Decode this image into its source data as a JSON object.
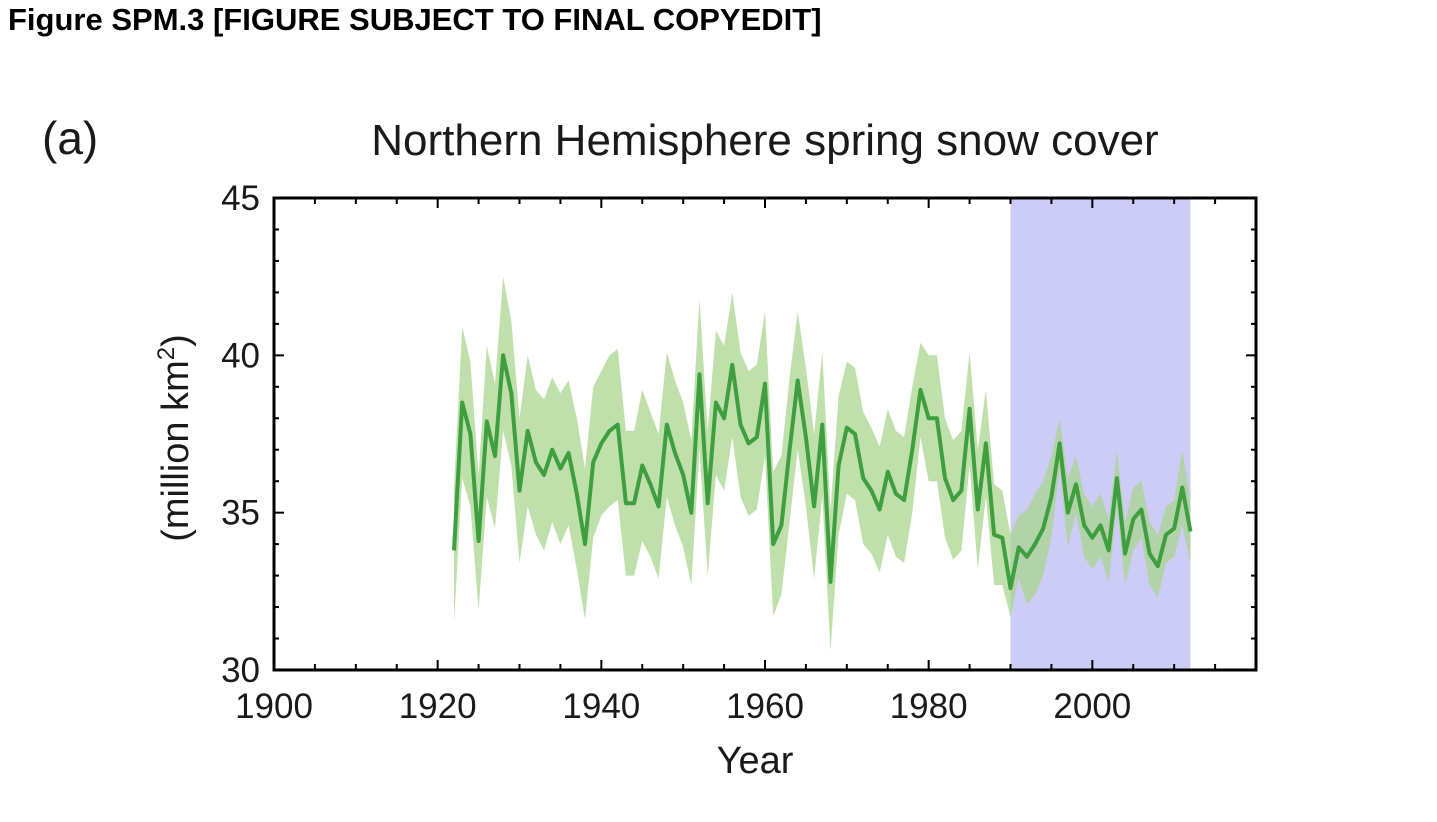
{
  "figure_heading": "Figure SPM.3 [FIGURE SUBJECT TO FINAL COPYEDIT]",
  "panel_label": "(a)",
  "colors": {
    "line": "#3f9e3f",
    "band": "#a9d58f",
    "highlight": "#ccccf7",
    "axis": "#000000"
  },
  "chart_data": {
    "type": "line",
    "title": "Northern Hemisphere spring snow cover",
    "xlabel": "Year",
    "ylabel_main": "(million km",
    "ylabel_sup": "2",
    "ylabel_end": ")",
    "xlim": [
      1900,
      2020
    ],
    "ylim": [
      30,
      45
    ],
    "xticks": [
      1900,
      1920,
      1940,
      1960,
      1980,
      2000
    ],
    "yticks": [
      30,
      35,
      40,
      45
    ],
    "highlight_period": [
      1990,
      2012
    ],
    "grid": false,
    "legend": "none",
    "series": [
      {
        "x": [
          1922,
          1923,
          1924,
          1925,
          1926,
          1927,
          1928,
          1929,
          1930,
          1931,
          1932,
          1933,
          1934,
          1935,
          1936,
          1937,
          1938,
          1939,
          1940,
          1941,
          1942,
          1943,
          1944,
          1945,
          1946,
          1947,
          1948,
          1949,
          1950,
          1951,
          1952,
          1953,
          1954,
          1955,
          1956,
          1957,
          1958,
          1959,
          1960,
          1961,
          1962,
          1963,
          1964,
          1965,
          1966,
          1967,
          1968,
          1969,
          1970,
          1971,
          1972,
          1973,
          1974,
          1975,
          1976,
          1977,
          1978,
          1979,
          1980,
          1981,
          1982,
          1983,
          1984,
          1985,
          1986,
          1987,
          1988,
          1989,
          1990,
          1991,
          1992,
          1993,
          1994,
          1995,
          1996,
          1997,
          1998,
          1999,
          2000,
          2001,
          2002,
          2003,
          2004,
          2005,
          2006,
          2007,
          2008,
          2009,
          2010,
          2011,
          2012
        ],
        "y": [
          33.8,
          38.5,
          37.5,
          34.1,
          37.9,
          36.8,
          40.0,
          38.8,
          35.7,
          37.6,
          36.6,
          36.2,
          37.0,
          36.4,
          36.9,
          35.6,
          34.0,
          36.6,
          37.2,
          37.6,
          37.8,
          35.3,
          35.3,
          36.5,
          35.9,
          35.2,
          37.8,
          36.9,
          36.2,
          35.0,
          39.4,
          35.3,
          38.5,
          38.0,
          39.7,
          37.8,
          37.2,
          37.4,
          39.1,
          34.0,
          34.6,
          37.0,
          39.2,
          37.4,
          35.2,
          37.8,
          32.8,
          36.5,
          37.7,
          37.5,
          36.1,
          35.7,
          35.1,
          36.3,
          35.6,
          35.4,
          37.0,
          38.9,
          38.0,
          38.0,
          36.1,
          35.4,
          35.7,
          38.3,
          35.1,
          37.2,
          34.3,
          34.2,
          32.6,
          33.9,
          33.6,
          34.0,
          34.5,
          35.5,
          37.2,
          35.0,
          35.9,
          34.6,
          34.2,
          34.6,
          33.8,
          36.1,
          33.7,
          34.8,
          35.1,
          33.7,
          33.3,
          34.3,
          34.5,
          35.8,
          34.4
        ],
        "upper": [
          35.8,
          40.9,
          39.8,
          36.2,
          40.3,
          39.1,
          42.5,
          41.1,
          38.0,
          40.0,
          38.9,
          38.6,
          39.3,
          38.8,
          39.2,
          38.0,
          36.4,
          39.0,
          39.5,
          40.0,
          40.2,
          37.6,
          37.6,
          38.9,
          38.2,
          37.5,
          40.1,
          39.2,
          38.5,
          37.3,
          41.8,
          37.6,
          40.8,
          40.3,
          42.0,
          40.1,
          39.5,
          39.7,
          41.4,
          36.3,
          36.8,
          39.3,
          41.4,
          39.6,
          37.5,
          40.1,
          35.1,
          38.7,
          39.8,
          39.6,
          38.2,
          37.7,
          37.1,
          38.3,
          37.6,
          37.4,
          39.0,
          40.4,
          40.0,
          40.0,
          38.0,
          37.3,
          37.6,
          40.1,
          37.0,
          38.9,
          35.9,
          35.7,
          34.3,
          34.9,
          35.1,
          35.6,
          36.0,
          36.8,
          38.0,
          36.1,
          36.8,
          35.6,
          35.2,
          35.6,
          34.8,
          37.0,
          34.7,
          35.8,
          36.0,
          34.7,
          34.3,
          35.2,
          35.4,
          37.0,
          35.4
        ],
        "lower": [
          31.5,
          36.1,
          35.2,
          31.9,
          35.5,
          34.5,
          37.6,
          36.5,
          33.4,
          35.2,
          34.3,
          33.8,
          34.7,
          34.0,
          34.6,
          33.2,
          31.6,
          34.2,
          34.9,
          35.2,
          35.4,
          33.0,
          33.0,
          34.1,
          33.6,
          32.9,
          35.5,
          34.6,
          33.9,
          32.7,
          37.0,
          33.0,
          36.2,
          35.7,
          37.4,
          35.5,
          34.9,
          35.1,
          36.8,
          31.7,
          32.4,
          34.7,
          37.0,
          35.2,
          32.9,
          35.5,
          30.6,
          34.3,
          35.6,
          35.4,
          34.0,
          33.7,
          33.1,
          34.3,
          33.6,
          33.4,
          35.0,
          37.4,
          36.0,
          36.0,
          34.2,
          33.5,
          33.8,
          36.5,
          33.2,
          35.5,
          32.7,
          32.7,
          31.7,
          32.9,
          32.1,
          32.4,
          33.0,
          34.2,
          36.4,
          33.9,
          35.0,
          33.6,
          33.2,
          33.6,
          32.8,
          35.2,
          32.7,
          33.8,
          34.2,
          32.7,
          32.3,
          33.4,
          33.6,
          34.6,
          33.4
        ]
      }
    ]
  }
}
